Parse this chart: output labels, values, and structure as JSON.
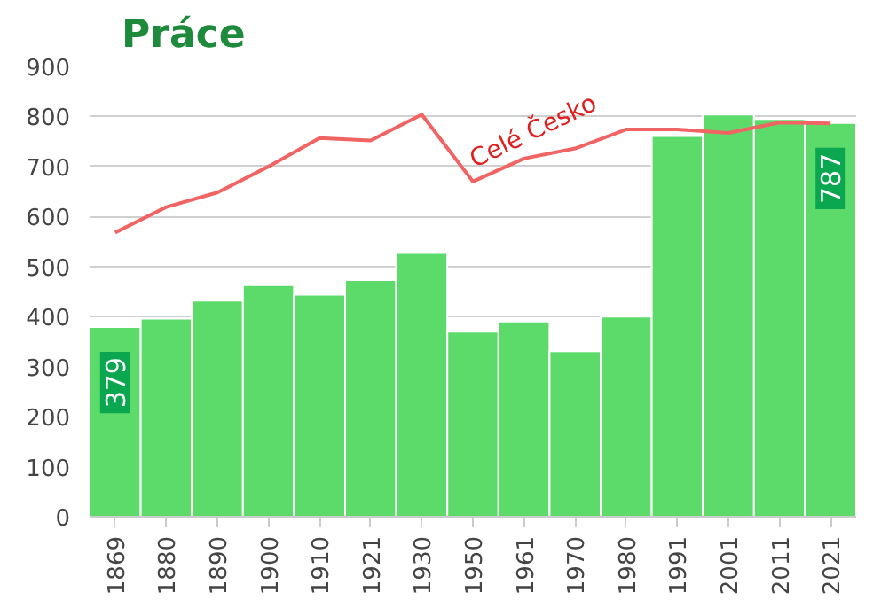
{
  "chart_data": {
    "type": "bar",
    "title": "Práce",
    "categories": [
      "1869",
      "1880",
      "1890",
      "1900",
      "1910",
      "1921",
      "1930",
      "1950",
      "1961",
      "1970",
      "1980",
      "1991",
      "2001",
      "2011",
      "2021"
    ],
    "series": [
      {
        "color": "#5cdb6a",
        "values": [
          379,
          396,
          432,
          463,
          444,
          473,
          527,
          370,
          390,
          331,
          400,
          761,
          804,
          795,
          787
        ],
        "value_labels": [
          "379",
          null,
          null,
          null,
          null,
          null,
          null,
          null,
          null,
          null,
          null,
          null,
          null,
          null,
          "787"
        ]
      },
      {
        "type": "line",
        "name": "Celé Česko",
        "color": "#f06464",
        "values": [
          568,
          619,
          648,
          700,
          757,
          752,
          804,
          670,
          716,
          736,
          774,
          774,
          767,
          788,
          786
        ]
      }
    ],
    "ylim": [
      0,
      900
    ],
    "yticks": [
      0,
      100,
      200,
      300,
      400,
      500,
      600,
      700,
      800,
      900
    ],
    "grid": "y"
  }
}
